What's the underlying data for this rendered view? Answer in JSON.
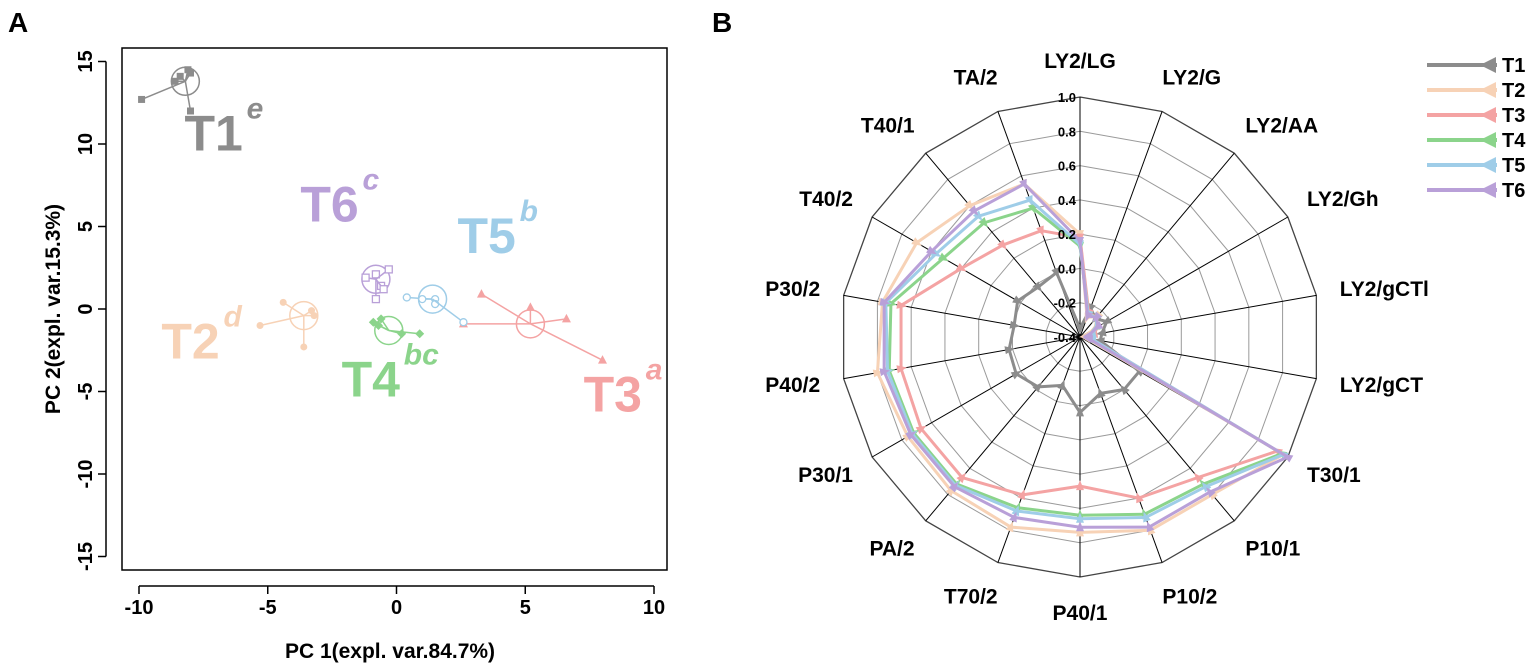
{
  "chart_data": [
    {
      "panel": "A",
      "type": "scatter",
      "xlabel": "PC 1(expl. var.84.7%)",
      "ylabel": "PC 2(expl. var.15.3%)",
      "xlim": [
        -10.5,
        10.5
      ],
      "ylim": [
        -16,
        15.5
      ],
      "xticks": [
        -10,
        -5,
        0,
        5,
        10
      ],
      "yticks": [
        15,
        10,
        5,
        0,
        -5,
        -10,
        -15
      ],
      "xtick_labels": [
        "-10",
        "-5",
        "0",
        "5",
        "10"
      ],
      "ytick_labels": [
        "15",
        "10",
        "5",
        "0",
        "-5",
        "-10",
        "-15"
      ],
      "groups": [
        {
          "name": "T1",
          "sup": "e",
          "color": "#8c8c8c",
          "center": [
            -8.2,
            13.8
          ],
          "points": [
            [
              -9.9,
              12.7
            ],
            [
              -8.6,
              13.8
            ],
            [
              -8.4,
              14.1
            ],
            [
              -8.1,
              14.5
            ],
            [
              -8.0,
              14.3
            ],
            [
              -8.0,
              12.0
            ]
          ],
          "label_pos": [
            -7.1,
            9.6
          ],
          "marker": "square"
        },
        {
          "name": "T2",
          "sup": "d",
          "color": "#f7d2b6",
          "center": [
            -3.6,
            -0.4
          ],
          "points": [
            [
              -5.3,
              -1.0
            ],
            [
              -4.4,
              0.4
            ],
            [
              -3.3,
              -0.1
            ],
            [
              -3.2,
              -0.4
            ],
            [
              -3.6,
              -2.3
            ]
          ],
          "label_pos": [
            -8.0,
            -3.0
          ],
          "marker": "circle-filled"
        },
        {
          "name": "T3",
          "sup": "a",
          "color": "#f4a3a3",
          "center": [
            5.2,
            -0.9
          ],
          "points": [
            [
              3.3,
              0.9
            ],
            [
              5.2,
              0.1
            ],
            [
              6.6,
              -0.6
            ],
            [
              8.0,
              -3.1
            ],
            [
              2.6,
              -0.9
            ]
          ],
          "label_pos": [
            8.4,
            -6.2
          ],
          "marker": "triangle"
        },
        {
          "name": "T4",
          "sup": "bc",
          "color": "#8bd48b",
          "center": [
            -0.3,
            -1.3
          ],
          "points": [
            [
              -0.9,
              -0.8
            ],
            [
              -0.6,
              -0.6
            ],
            [
              0.2,
              -1.5
            ],
            [
              0.9,
              -1.5
            ],
            [
              -0.7,
              -1.0
            ]
          ],
          "label_pos": [
            -1.0,
            -5.3
          ],
          "marker": "diamond"
        },
        {
          "name": "T5",
          "sup": "b",
          "color": "#9fcde8",
          "center": [
            1.4,
            0.6
          ],
          "points": [
            [
              0.4,
              0.7
            ],
            [
              1.0,
              0.6
            ],
            [
              1.5,
              0.6
            ],
            [
              1.5,
              0.3
            ],
            [
              2.6,
              -0.8
            ]
          ],
          "label_pos": [
            3.5,
            3.4
          ],
          "marker": "circle-open"
        },
        {
          "name": "T6",
          "sup": "c",
          "color": "#b9a0d8",
          "center": [
            -0.8,
            1.8
          ],
          "points": [
            [
              -1.2,
              1.9
            ],
            [
              -0.8,
              2.1
            ],
            [
              -0.6,
              1.4
            ],
            [
              -0.5,
              1.2
            ],
            [
              -0.3,
              2.4
            ],
            [
              -0.8,
              0.6
            ]
          ],
          "label_pos": [
            -2.6,
            5.3
          ],
          "marker": "square-open"
        }
      ]
    },
    {
      "panel": "B",
      "type": "radar",
      "axes": [
        "LY2/LG",
        "LY2/G",
        "LY2/AA",
        "LY2/Gh",
        "LY2/gCTl",
        "LY2/gCT",
        "T30/1",
        "P10/1",
        "P10/2",
        "P40/1",
        "T70/2",
        "PA/2",
        "P30/1",
        "P40/2",
        "P30/2",
        "T40/2",
        "T40/1",
        "TA/2"
      ],
      "rmin": -0.4,
      "rmax": 1.0,
      "rticks": [
        "1.0",
        "0.8",
        "0.6",
        "0.4",
        "0.2",
        "0.0",
        "-0.2",
        "-0.4"
      ],
      "legend": [
        "T1",
        "T2",
        "T3",
        "T4",
        "T5",
        "T6"
      ],
      "series": [
        {
          "name": "T1",
          "color": "#8c8c8c",
          "values": [
            -0.35,
            -0.22,
            -0.26,
            -0.22,
            -0.27,
            -0.28,
            0.0,
            0.0,
            -0.05,
            0.04,
            -0.1,
            -0.02,
            0.03,
            0.02,
            -0.01,
            0.02,
            -0.02,
            0.0
          ]
        },
        {
          "name": "T2",
          "color": "#f7d2b6",
          "values": [
            0.2,
            -0.28,
            -0.24,
            -0.3,
            -0.37,
            -0.36,
            0.97,
            0.8,
            0.8,
            0.74,
            0.78,
            0.77,
            0.76,
            0.8,
            0.77,
            0.7,
            0.6,
            0.55
          ]
        },
        {
          "name": "T3",
          "color": "#f4a3a3",
          "values": [
            0.18,
            -0.25,
            -0.25,
            -0.28,
            -0.32,
            -0.33,
            0.93,
            0.67,
            0.6,
            0.47,
            0.58,
            0.67,
            0.67,
            0.66,
            0.66,
            0.4,
            0.3,
            0.26
          ]
        },
        {
          "name": "T4",
          "color": "#8bd48b",
          "values": [
            0.13,
            -0.26,
            -0.25,
            -0.29,
            -0.34,
            -0.34,
            0.96,
            0.72,
            0.7,
            0.64,
            0.66,
            0.72,
            0.72,
            0.73,
            0.72,
            0.52,
            0.47,
            0.4
          ]
        },
        {
          "name": "T5",
          "color": "#9fcde8",
          "values": [
            0.14,
            -0.26,
            -0.25,
            -0.29,
            -0.33,
            -0.33,
            0.97,
            0.74,
            0.72,
            0.66,
            0.68,
            0.73,
            0.73,
            0.74,
            0.75,
            0.57,
            0.52,
            0.45
          ]
        },
        {
          "name": "T6",
          "color": "#b9a0d8",
          "values": [
            0.16,
            -0.27,
            -0.25,
            -0.28,
            -0.35,
            -0.35,
            1.0,
            0.78,
            0.78,
            0.71,
            0.72,
            0.74,
            0.74,
            0.76,
            0.76,
            0.6,
            0.56,
            0.55
          ]
        }
      ]
    }
  ],
  "panel_letters": {
    "a": "A",
    "b": "B"
  }
}
